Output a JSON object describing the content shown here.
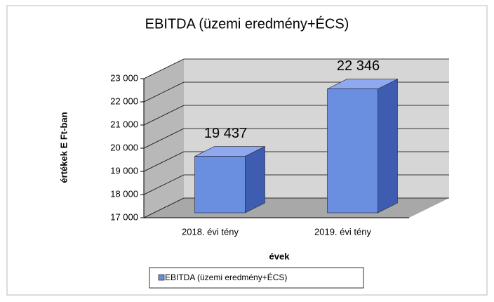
{
  "chart_data": {
    "type": "bar3d",
    "title": "EBITDA (üzemi eredmény+ÉCS)",
    "y_label": "értékek E Ft-ban",
    "x_label": "évek",
    "categories": [
      "2018. évi tény",
      "2019. évi tény"
    ],
    "series": [
      {
        "name": "EBITDA (üzemi eredmény+ÉCS)",
        "color": "#6a8ee0",
        "values": [
          19437,
          22346
        ],
        "value_labels": [
          "19 437",
          "22 346"
        ]
      }
    ],
    "ylim": [
      17000,
      23000
    ],
    "yticks": [
      {
        "value": 17000,
        "label": "17 000"
      },
      {
        "value": 18000,
        "label": "18 000"
      },
      {
        "value": 19000,
        "label": "19 000"
      },
      {
        "value": 20000,
        "label": "20 000"
      },
      {
        "value": 21000,
        "label": "21 000"
      },
      {
        "value": 22000,
        "label": "22 000"
      },
      {
        "value": 23000,
        "label": "23 000"
      }
    ],
    "grid": true,
    "legend": "bottom"
  }
}
